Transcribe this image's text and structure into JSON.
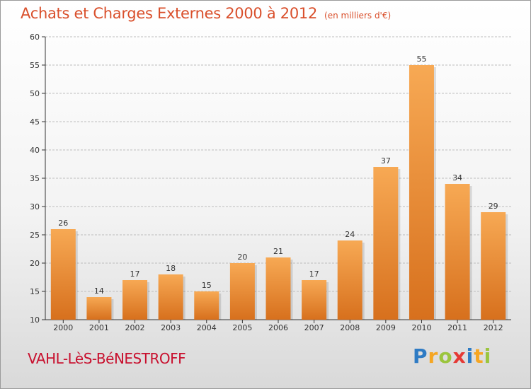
{
  "header": {
    "title": "Achats et Charges Externes 2000 à 2012",
    "subtitle": "(en milliers d'€)"
  },
  "footer": {
    "location": "VAHL-LèS-BéNESTROFF",
    "brand_letters": [
      "P",
      "r",
      "o",
      "x",
      "i",
      "t",
      "i"
    ],
    "brand_colors": [
      "#2e7bc4",
      "#f5a623",
      "#9bc53d",
      "#e53935",
      "#2e7bc4",
      "#f5a623",
      "#9bc53d"
    ]
  },
  "colors": {
    "bar_top": "#f7a954",
    "bar_bottom": "#d7701d",
    "grid": "#bdbdbd",
    "title": "#d94f2b",
    "location": "#c8102e"
  },
  "chart_data": {
    "type": "bar",
    "title": "Achats et Charges Externes 2000 à 2012",
    "subtitle": "(en milliers d'€)",
    "categories": [
      "2000",
      "2001",
      "2002",
      "2003",
      "2004",
      "2005",
      "2006",
      "2007",
      "2008",
      "2009",
      "2010",
      "2011",
      "2012"
    ],
    "values": [
      26,
      14,
      17,
      18,
      15,
      20,
      21,
      17,
      24,
      37,
      55,
      34,
      29
    ],
    "ylim": [
      10,
      60
    ],
    "yticks": [
      10,
      15,
      20,
      25,
      30,
      35,
      40,
      45,
      50,
      55,
      60
    ],
    "xlabel": "",
    "ylabel": "",
    "grid": true,
    "data_labels": true
  }
}
